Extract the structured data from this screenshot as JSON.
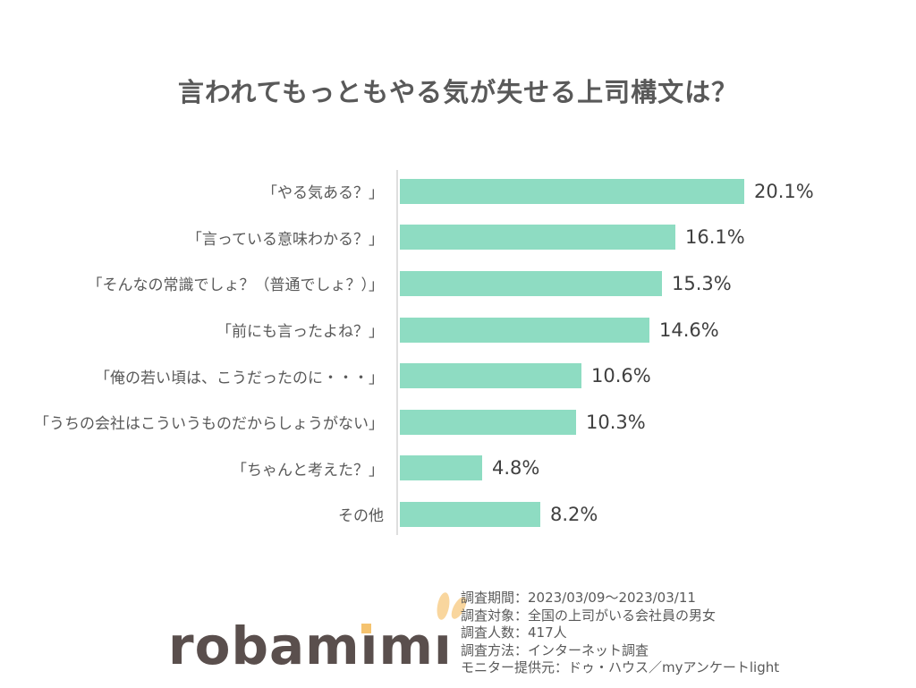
{
  "chart_data": {
    "type": "bar",
    "orientation": "horizontal",
    "title": "言われてもっともやる気が失せる上司構文は？",
    "categories": [
      "「やる気ある？」",
      "「言っている意味わかる？」",
      "「そんなの常識でしょ？（普通でしょ？）」",
      "「前にも言ったよね？」",
      "「俺の若い頃は、こうだったのに・・・」",
      "「うちの会社はこういうものだからしょうがない」",
      "「ちゃんと考えた？」",
      "その他"
    ],
    "values": [
      20.1,
      16.1,
      15.3,
      14.6,
      10.6,
      10.3,
      4.8,
      8.2
    ],
    "value_labels": [
      "20.1%",
      "16.1%",
      "15.3%",
      "14.6%",
      "10.6%",
      "10.3%",
      "4.8%",
      "8.2%"
    ],
    "xlim": [
      0,
      21
    ],
    "bar_color": "#8edcc2",
    "grid": "off",
    "legend": "none"
  },
  "survey_info": {
    "lines": [
      "調査期間：2023/03/09～2023/03/11",
      "調査対象：全国の上司がいる会社員の男女",
      "調査人数：417人",
      "調査方法：インターネット調査",
      "モニター提供元：ドゥ・ハウス／myアンケートlight"
    ]
  },
  "logo": {
    "brand": "robamimi",
    "seg1": "robam",
    "seg2": "ı",
    "seg3": "m",
    "seg4": "ı",
    "text_color": "#5a4f4d",
    "accent_color": "#f5c36f",
    "ear_color": "#f9d69e"
  }
}
